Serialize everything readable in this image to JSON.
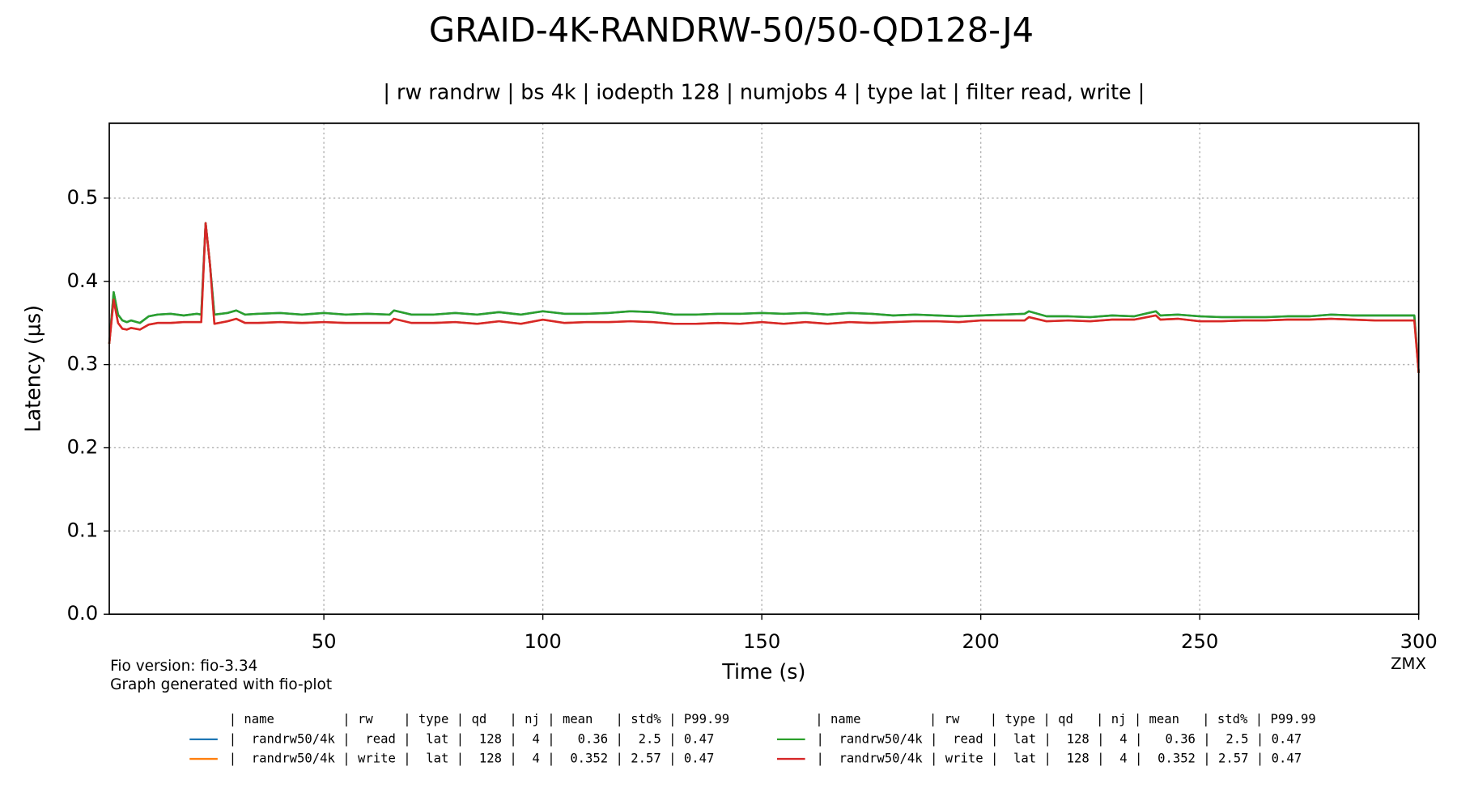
{
  "chart_data": {
    "type": "line",
    "title": "GRAID-4K-RANDRW-50/50-QD128-J4",
    "subtitle": "| rw randrw | bs 4k | iodepth 128 | numjobs 4 | type lat | filter read, write |",
    "x_label": "Time (s)",
    "y_label": "Latency (µs)",
    "footnotes": [
      "Fio version: fio-3.34",
      "Graph generated with fio-plot"
    ],
    "watermark": "ZMX",
    "legend_header": "| name         | rw    | type | qd   | nj | mean   | std% | P99.99",
    "xlim": [
      1,
      300
    ],
    "ylim": [
      0,
      0.59
    ],
    "xticks": [
      50,
      100,
      150,
      200,
      250,
      300
    ],
    "yticks": [
      {
        "value": 0,
        "label": "0.0"
      },
      0.1,
      0.2,
      0.3,
      0.4,
      0.5
    ],
    "grid": true,
    "x": [
      1,
      2,
      3,
      4,
      5,
      6,
      8,
      10,
      12,
      15,
      18,
      21,
      22,
      23,
      24,
      25,
      28,
      30,
      32,
      35,
      40,
      45,
      50,
      55,
      60,
      65,
      66,
      70,
      75,
      80,
      85,
      90,
      95,
      100,
      105,
      110,
      115,
      120,
      125,
      130,
      135,
      140,
      145,
      150,
      155,
      160,
      165,
      170,
      175,
      180,
      185,
      190,
      195,
      200,
      205,
      210,
      211,
      215,
      220,
      225,
      230,
      235,
      240,
      241,
      245,
      250,
      255,
      260,
      265,
      270,
      275,
      280,
      285,
      290,
      295,
      299,
      300
    ],
    "series": [
      {
        "name": "|  randrw50/4k |  read |  lat |  128 |  4 |   0.36 |  2.5 | 0.47",
        "color": "#1f77b4",
        "values": [
          0.325,
          0.387,
          0.36,
          0.353,
          0.351,
          0.353,
          0.35,
          0.358,
          0.36,
          0.361,
          0.359,
          0.361,
          0.36,
          0.47,
          0.42,
          0.36,
          0.362,
          0.365,
          0.36,
          0.361,
          0.362,
          0.36,
          0.362,
          0.36,
          0.361,
          0.36,
          0.365,
          0.36,
          0.36,
          0.362,
          0.36,
          0.363,
          0.36,
          0.364,
          0.361,
          0.361,
          0.362,
          0.364,
          0.363,
          0.36,
          0.36,
          0.361,
          0.361,
          0.362,
          0.361,
          0.362,
          0.36,
          0.362,
          0.361,
          0.359,
          0.36,
          0.359,
          0.358,
          0.359,
          0.36,
          0.361,
          0.364,
          0.358,
          0.358,
          0.357,
          0.359,
          0.358,
          0.364,
          0.359,
          0.36,
          0.358,
          0.357,
          0.357,
          0.357,
          0.358,
          0.358,
          0.36,
          0.359,
          0.359,
          0.359,
          0.359,
          0.29
        ]
      },
      {
        "name": "|  randrw50/4k | write |  lat |  128 |  4 |  0.352 | 2.57 | 0.47",
        "color": "#ff7f0e",
        "values": [
          0.325,
          0.378,
          0.35,
          0.343,
          0.342,
          0.344,
          0.342,
          0.348,
          0.35,
          0.35,
          0.351,
          0.351,
          0.351,
          0.47,
          0.42,
          0.349,
          0.352,
          0.355,
          0.35,
          0.35,
          0.351,
          0.35,
          0.351,
          0.35,
          0.35,
          0.35,
          0.355,
          0.35,
          0.35,
          0.351,
          0.349,
          0.352,
          0.349,
          0.354,
          0.35,
          0.351,
          0.351,
          0.352,
          0.351,
          0.349,
          0.349,
          0.35,
          0.349,
          0.351,
          0.349,
          0.351,
          0.349,
          0.351,
          0.35,
          0.351,
          0.352,
          0.352,
          0.351,
          0.353,
          0.353,
          0.353,
          0.357,
          0.352,
          0.353,
          0.352,
          0.354,
          0.354,
          0.359,
          0.354,
          0.355,
          0.352,
          0.352,
          0.353,
          0.353,
          0.354,
          0.354,
          0.355,
          0.354,
          0.353,
          0.353,
          0.353,
          0.29
        ]
      },
      {
        "name": "|  randrw50/4k |  read |  lat |  128 |  4 |   0.36 |  2.5 | 0.47",
        "color": "#2ca02c",
        "values": [
          0.325,
          0.387,
          0.36,
          0.353,
          0.351,
          0.353,
          0.35,
          0.358,
          0.36,
          0.361,
          0.359,
          0.361,
          0.36,
          0.47,
          0.42,
          0.36,
          0.362,
          0.365,
          0.36,
          0.361,
          0.362,
          0.36,
          0.362,
          0.36,
          0.361,
          0.36,
          0.365,
          0.36,
          0.36,
          0.362,
          0.36,
          0.363,
          0.36,
          0.364,
          0.361,
          0.361,
          0.362,
          0.364,
          0.363,
          0.36,
          0.36,
          0.361,
          0.361,
          0.362,
          0.361,
          0.362,
          0.36,
          0.362,
          0.361,
          0.359,
          0.36,
          0.359,
          0.358,
          0.359,
          0.36,
          0.361,
          0.364,
          0.358,
          0.358,
          0.357,
          0.359,
          0.358,
          0.364,
          0.359,
          0.36,
          0.358,
          0.357,
          0.357,
          0.357,
          0.358,
          0.358,
          0.36,
          0.359,
          0.359,
          0.359,
          0.359,
          0.29
        ]
      },
      {
        "name": "|  randrw50/4k | write |  lat |  128 |  4 |  0.352 | 2.57 | 0.47",
        "color": "#d62728",
        "values": [
          0.325,
          0.378,
          0.35,
          0.343,
          0.342,
          0.344,
          0.342,
          0.348,
          0.35,
          0.35,
          0.351,
          0.351,
          0.351,
          0.47,
          0.42,
          0.349,
          0.352,
          0.355,
          0.35,
          0.35,
          0.351,
          0.35,
          0.351,
          0.35,
          0.35,
          0.35,
          0.355,
          0.35,
          0.35,
          0.351,
          0.349,
          0.352,
          0.349,
          0.354,
          0.35,
          0.351,
          0.351,
          0.352,
          0.351,
          0.349,
          0.349,
          0.35,
          0.349,
          0.351,
          0.349,
          0.351,
          0.349,
          0.351,
          0.35,
          0.351,
          0.352,
          0.352,
          0.351,
          0.353,
          0.353,
          0.353,
          0.357,
          0.352,
          0.353,
          0.352,
          0.354,
          0.354,
          0.359,
          0.354,
          0.355,
          0.352,
          0.352,
          0.353,
          0.353,
          0.354,
          0.354,
          0.355,
          0.354,
          0.353,
          0.353,
          0.353,
          0.29
        ]
      }
    ]
  }
}
